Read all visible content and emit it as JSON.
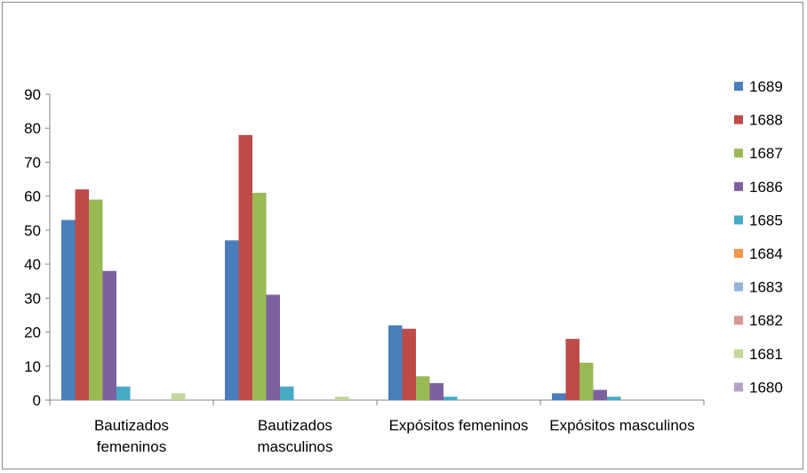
{
  "chart_data": {
    "type": "bar",
    "categories": [
      [
        "Bautizados",
        "femeninos"
      ],
      [
        "Bautizados",
        "masculinos"
      ],
      [
        "Expósitos femeninos"
      ],
      [
        "Expósitos masculinos"
      ]
    ],
    "series": [
      {
        "name": "1689",
        "color": "#4a7ebb",
        "values": [
          53,
          47,
          22,
          2
        ]
      },
      {
        "name": "1688",
        "color": "#be4b48",
        "values": [
          62,
          78,
          21,
          18
        ]
      },
      {
        "name": "1687",
        "color": "#98b954",
        "values": [
          59,
          61,
          7,
          11
        ]
      },
      {
        "name": "1686",
        "color": "#7d60a0",
        "values": [
          38,
          31,
          5,
          3
        ]
      },
      {
        "name": "1685",
        "color": "#46aac5",
        "values": [
          4,
          4,
          1,
          1
        ]
      },
      {
        "name": "1684",
        "color": "#f79646",
        "values": [
          0,
          0,
          0,
          0
        ]
      },
      {
        "name": "1683",
        "color": "#95b3d7",
        "values": [
          0,
          0,
          0,
          0
        ]
      },
      {
        "name": "1682",
        "color": "#d99694",
        "values": [
          0,
          0,
          0,
          0
        ]
      },
      {
        "name": "1681",
        "color": "#c3d69b",
        "values": [
          2,
          1,
          0,
          0
        ]
      },
      {
        "name": "1680",
        "color": "#b3a2c7",
        "values": [
          0,
          0,
          0,
          0
        ]
      }
    ],
    "title": "",
    "xlabel": "",
    "ylabel": "",
    "ylim": [
      0,
      90
    ],
    "yticks": [
      0,
      10,
      20,
      30,
      40,
      50,
      60,
      70,
      80,
      90
    ],
    "grid": false,
    "legend": "right"
  }
}
